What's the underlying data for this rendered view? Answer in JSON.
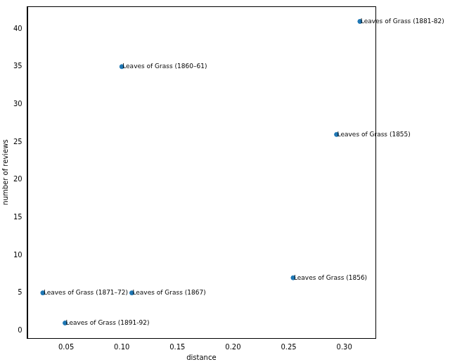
{
  "chart_data": {
    "type": "scatter",
    "x_label": "distance",
    "y_label": "number of reviews",
    "x": [
      0.314,
      0.1,
      0.293,
      0.254,
      0.029,
      0.109,
      0.049
    ],
    "values": [
      41,
      35,
      26,
      7,
      5,
      5,
      1
    ],
    "annotations": [
      "Leaves of Grass (1881-82)",
      "Leaves of Grass (1860–61)",
      "Leaves of Grass (1855)",
      "Leaves of Grass (1856)",
      "Leaves of Grass (1871–72)",
      "Leaves of Grass (1867)",
      "Leaves of Grass (1891-92)"
    ],
    "color": "#1f77b4",
    "marker": "circle",
    "xlim": [
      0.015,
      0.328
    ],
    "ylim": [
      -1,
      43
    ],
    "xticks": [
      0.05,
      {
        "value": 0.1,
        "label": "0.10"
      },
      0.15,
      {
        "value": 0.2,
        "label": "0.20"
      },
      0.25,
      {
        "value": 0.3,
        "label": "0.30"
      }
    ],
    "yticks": [
      0,
      5,
      10,
      15,
      20,
      25,
      30,
      35,
      40
    ],
    "grid": false
  }
}
